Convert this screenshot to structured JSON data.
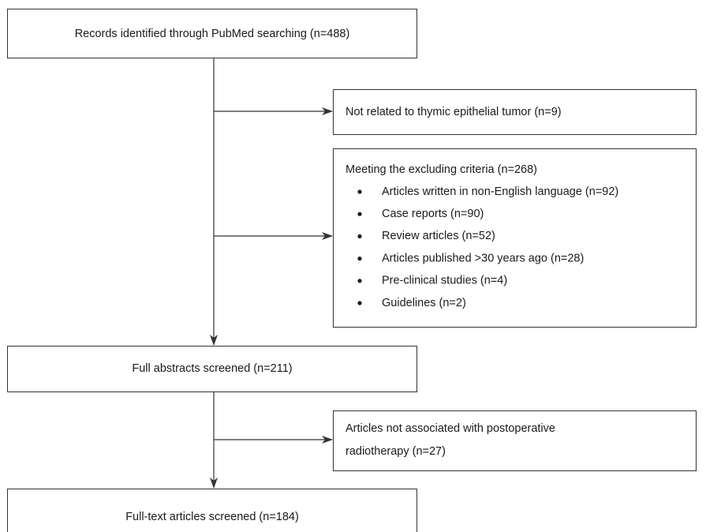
{
  "nodes": [
    {
      "label": "Records identified through PubMed searching (n=488)"
    },
    {
      "label": "Not related to thymic epithelial tumor (n=9)"
    },
    {
      "label": "Meeting the excluding criteria (n=268)",
      "items": [
        "Articles written in non-English language (n=92)",
        "Case reports (n=90)",
        "Review articles (n=52)",
        "Articles published >30 years ago (n=28)",
        "Pre-clinical studies (n=4)",
        "Guidelines (n=2)"
      ]
    },
    {
      "label": "Full abstracts screened (n=211)"
    },
    {
      "lines": [
        "Articles not associated with postoperative",
        "radiotherapy (n=27)"
      ]
    },
    {
      "label": "Full-text articles screened (n=184)"
    }
  ]
}
